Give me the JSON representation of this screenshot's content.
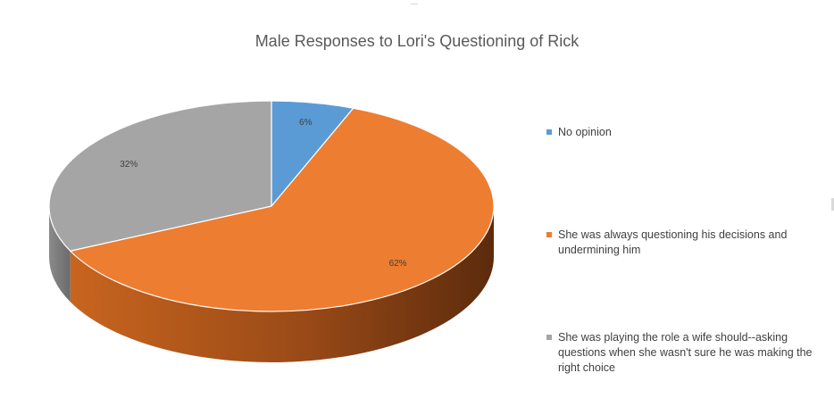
{
  "chart_data": {
    "type": "pie",
    "title": "Male Responses to Lori's Questioning of Rick",
    "legend_position": "right",
    "slices": [
      {
        "label": "No opinion",
        "value": 6,
        "value_label": "6%",
        "color": "#5B9BD5"
      },
      {
        "label": "She was always questioning his decisions and undermining him",
        "value": 62,
        "value_label": "62%",
        "color": "#ED7D31"
      },
      {
        "label": "She was playing the role a wife should--asking questions when she wasn't sure he was making the right choice",
        "value": 32,
        "value_label": "32%",
        "color": "#A5A5A5"
      }
    ]
  }
}
